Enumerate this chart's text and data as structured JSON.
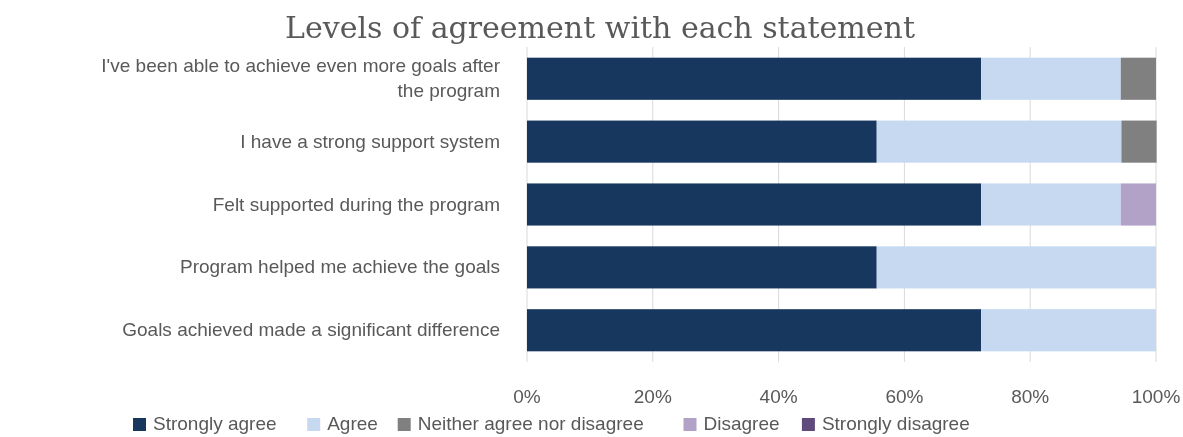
{
  "chart_data": {
    "type": "bar",
    "orientation": "horizontal",
    "stacked": true,
    "title": "Levels of agreement with each statement",
    "categories": [
      "I've been able to achieve even more goals after the program",
      "I have a strong support system",
      "Felt supported during the program",
      "Program helped me achieve the goals",
      "Goals achieved made a significant difference"
    ],
    "series": [
      {
        "name": "Strongly agree",
        "color": "#17375e",
        "values": [
          72.2,
          55.6,
          72.2,
          55.6,
          72.2
        ]
      },
      {
        "name": "Agree",
        "color": "#c6d9f1",
        "values": [
          22.2,
          38.9,
          22.2,
          44.4,
          27.8
        ]
      },
      {
        "name": "Neither agree nor disagree",
        "color": "#808080",
        "values": [
          5.6,
          5.6,
          0,
          0,
          0
        ]
      },
      {
        "name": "Disagree",
        "color": "#b3a2c7",
        "values": [
          0,
          0,
          5.6,
          0,
          0
        ]
      },
      {
        "name": "Strongly disagree",
        "color": "#604a7b",
        "values": [
          0,
          0,
          0,
          0,
          0
        ]
      }
    ],
    "xlim": [
      0,
      100
    ],
    "xticks": [
      {
        "value": 0,
        "label": "0%"
      },
      {
        "value": 20,
        "label": "20%"
      },
      {
        "value": 40,
        "label": "40%"
      },
      {
        "value": 60,
        "label": "60%"
      },
      {
        "value": 80,
        "label": "80%"
      },
      {
        "value": 100,
        "label": "100%"
      }
    ],
    "grid": "x",
    "legend": "bottom"
  }
}
